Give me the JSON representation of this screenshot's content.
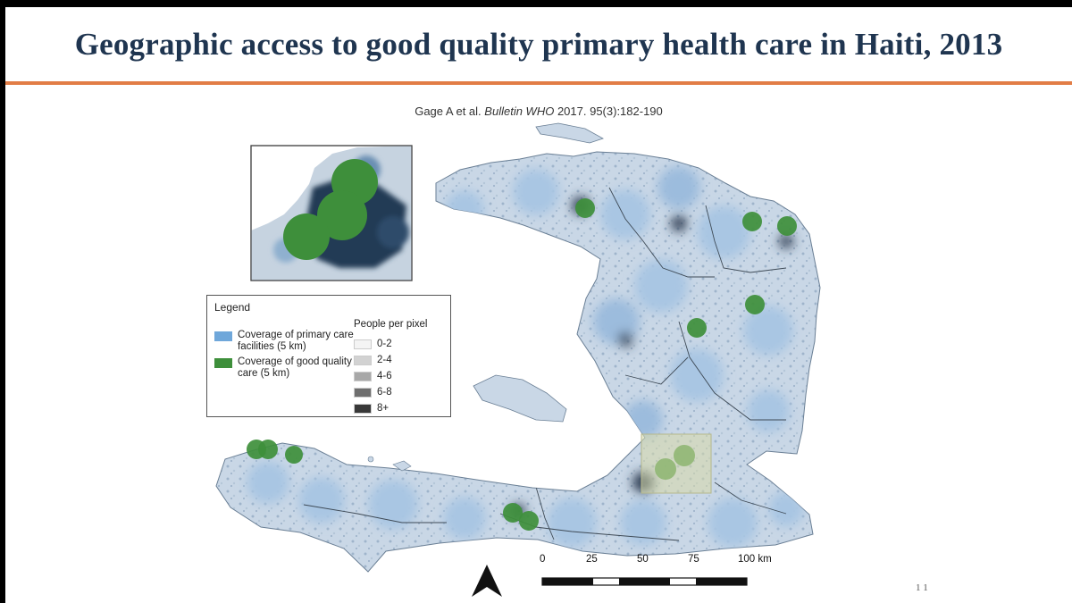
{
  "slide": {
    "title": "Geographic access to good quality primary health care in Haiti, 2013",
    "citation": {
      "authors": "Gage A et al.",
      "journal": "Bulletin WHO",
      "ref": "2017. 95(3):182-190"
    },
    "page_number": "1 1"
  },
  "legend": {
    "title": "Legend",
    "coverage_primary": "Coverage of primary care facilities (5 km)",
    "coverage_good": "Coverage of good quality care (5 km)",
    "people_title": "People per pixel",
    "bins": [
      {
        "label": "0-2",
        "color": "#f4f4f4"
      },
      {
        "label": "2-4",
        "color": "#d2d2d2"
      },
      {
        "label": "4-6",
        "color": "#a8a8a8"
      },
      {
        "label": "6-8",
        "color": "#6e6e6e"
      },
      {
        "label": "8+",
        "color": "#383838"
      }
    ]
  },
  "scale_bar": {
    "labels": [
      "0",
      "25",
      "50",
      "75",
      "100 km"
    ]
  },
  "colors": {
    "primary_coverage": "#6fa7da",
    "good_quality": "#3e8f3b",
    "title": "#1f3550",
    "accent_rule": "#e27d46"
  },
  "icons": {
    "north": "north-arrow-icon"
  }
}
